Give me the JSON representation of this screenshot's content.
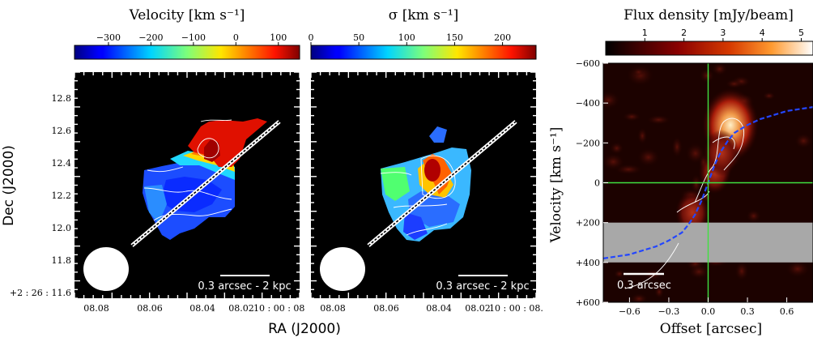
{
  "panels": {
    "velocity": {
      "colorbar_title": "Velocity [km s⁻¹]",
      "colorbar_ticks": [
        "−300",
        "−200",
        "−100",
        "0",
        "100"
      ],
      "colorbar_tick_values": [
        -300,
        -200,
        -100,
        0,
        100
      ],
      "colorbar_range": [
        -380,
        150
      ],
      "scalebar_label": "0.3 arcsec - 2 kpc",
      "colormap": "jet"
    },
    "sigma": {
      "colorbar_title": "σ [km s⁻¹]",
      "colorbar_ticks": [
        "0",
        "50",
        "100",
        "150",
        "200"
      ],
      "colorbar_tick_values": [
        0,
        50,
        100,
        150,
        200
      ],
      "colorbar_range": [
        0,
        235
      ],
      "scalebar_label": "0.3 arcsec - 2 kpc",
      "colormap": "jet"
    },
    "pv": {
      "colorbar_title": "Flux density [mJy/beam]",
      "colorbar_ticks": [
        "1",
        "2",
        "3",
        "4",
        "5"
      ],
      "colorbar_tick_values": [
        1,
        2,
        3,
        4,
        5
      ],
      "colorbar_range": [
        0,
        5.3
      ],
      "scalebar_label": "0.3 arcsec",
      "colormap": "gist_heat",
      "ylabel": "Velocity [km s⁻¹]",
      "xlabel": "Offset [arcsec]"
    }
  },
  "map_axes": {
    "ylabel": "Dec (J2000)",
    "xlabel": "RA (J2000)",
    "dec_ticks": [
      "12.8",
      "12.6",
      "12.4",
      "12.2",
      "12.0",
      "11.8"
    ],
    "dec_origin_label": "+2 : 26 : 11.6",
    "ra_ticks_left": [
      "08.08",
      "08.06",
      "08.04",
      "08.02",
      "10 : 00 : 08"
    ],
    "ra_ticks_right": [
      "08.08",
      "08.06",
      "08.04",
      "08.02",
      "10 : 00 : 08."
    ]
  },
  "chart_data": [
    {
      "type": "heatmap",
      "title": "Velocity [km s⁻¹]",
      "xlabel": "RA (J2000)",
      "ylabel": "Dec (J2000)",
      "ylim": [
        11.6,
        12.9
      ],
      "value_range": [
        -380,
        150
      ],
      "description_regions": [
        {
          "region": "north-east",
          "value": 120
        },
        {
          "region": "center",
          "value": -50
        },
        {
          "region": "south-west",
          "value": -240
        }
      ]
    },
    {
      "type": "heatmap",
      "title": "σ [km s⁻¹]",
      "xlabel": "RA (J2000)",
      "ylabel": "Dec (J2000)",
      "ylim": [
        11.6,
        12.9
      ],
      "value_range": [
        0,
        235
      ],
      "description_regions": [
        {
          "region": "peak",
          "value": 225
        },
        {
          "region": "center",
          "value": 150
        },
        {
          "region": "outer",
          "value": 60
        }
      ]
    },
    {
      "type": "heatmap",
      "title": "Flux density [mJy/beam]",
      "xlabel": "Offset [arcsec]",
      "ylabel": "Velocity [km s⁻¹]",
      "xlim": [
        -0.8,
        0.8
      ],
      "ylim": [
        -600,
        600
      ],
      "x_ticks": [
        -0.6,
        -0.3,
        0.0,
        0.3,
        0.6
      ],
      "y_ticks": [
        -600,
        -400,
        -200,
        0,
        200,
        400,
        600
      ],
      "x_tick_labels": [
        "−0.6",
        "−0.3",
        "0.0",
        "0.3",
        "0.6"
      ],
      "y_tick_labels": [
        "−600",
        "−400",
        "−200",
        "0",
        "+200",
        "+400",
        "+600"
      ],
      "masked_band": [
        200,
        400
      ],
      "blobs": [
        {
          "x": 0.17,
          "y": -290,
          "value": 5.0
        },
        {
          "x": 0.05,
          "y": -50,
          "value": 2.0
        },
        {
          "x": -0.12,
          "y": 150,
          "value": 2.2
        },
        {
          "x": 0.1,
          "y": -150,
          "value": 2.4
        }
      ],
      "model_curve": {
        "x": [
          -0.8,
          -0.6,
          -0.4,
          -0.3,
          -0.2,
          -0.15,
          -0.1,
          -0.05,
          0.0,
          0.05,
          0.1,
          0.15,
          0.2,
          0.3,
          0.4,
          0.6,
          0.8
        ],
        "y": [
          380,
          360,
          320,
          290,
          250,
          210,
          160,
          90,
          0,
          -90,
          -160,
          -210,
          -250,
          -290,
          -320,
          -360,
          -380
        ]
      }
    }
  ]
}
